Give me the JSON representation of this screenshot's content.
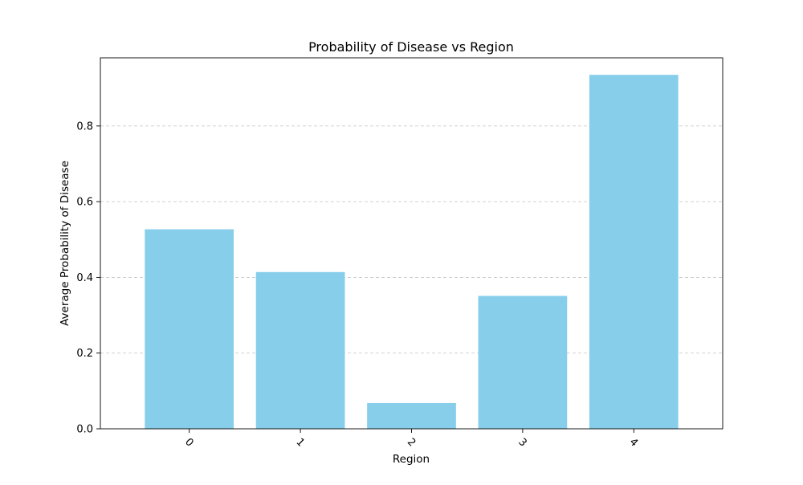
{
  "chart_data": {
    "type": "bar",
    "title": "Probability of Disease vs Region",
    "xlabel": "Region",
    "ylabel": "Average Probability of Disease",
    "categories": [
      "0",
      "1",
      "2",
      "3",
      "4"
    ],
    "values": [
      0.527,
      0.414,
      0.068,
      0.351,
      0.935
    ],
    "ylim": [
      0,
      0.98
    ],
    "yticks": [
      0.0,
      0.2,
      0.4,
      0.6,
      0.8
    ],
    "ytick_labels": [
      "0.0",
      "0.2",
      "0.4",
      "0.6",
      "0.8"
    ],
    "xtick_rotation": 45,
    "grid": {
      "axis": "y",
      "style": "dashed"
    },
    "bar_color": "#87CEEB"
  }
}
